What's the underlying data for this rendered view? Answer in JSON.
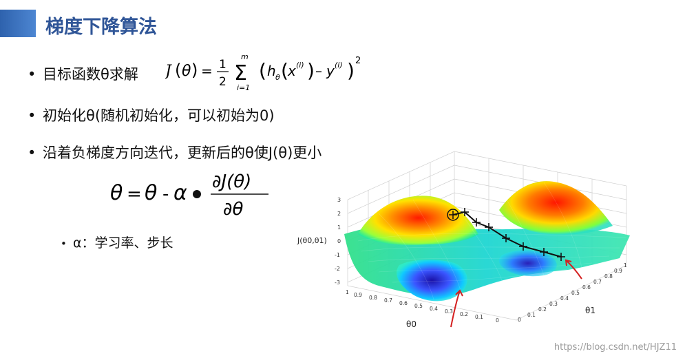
{
  "title": "梯度下降算法",
  "bullets": [
    {
      "text": "目标函数θ求解"
    },
    {
      "text": "初始化θ(随机初始化，可以初始为0)"
    },
    {
      "text": "沿着负梯度方向迭代，更新后的θ使J(θ)更小"
    }
  ],
  "sub_bullet": "α：学习率、步长",
  "equations": {
    "cost_function": "J(θ) = 1/2 Σ_{i=1}^{m} (h_θ(x^(i)) − y^(i))²",
    "update_rule": "θ = θ - α • ∂J(θ)/∂θ"
  },
  "plot": {
    "zlabel": "J(θ0,θ1)",
    "xlabel": "θ0",
    "ylabel": "θ1",
    "z_ticks": [
      "3",
      "2",
      "1",
      "0",
      "-1",
      "-2",
      "-3"
    ],
    "x_ticks": [
      "1",
      "0.9",
      "0.8",
      "0.7",
      "0.6",
      "0.5",
      "0.4",
      "0.3",
      "0.2",
      "0.1",
      "0"
    ],
    "y_ticks": [
      "0",
      "0.1",
      "0.2",
      "0.3",
      "0.4",
      "0.5",
      "0.6",
      "0.7",
      "0.8",
      "0.9",
      "1"
    ]
  },
  "watermark": "https://blog.csdn.net/HJZ11",
  "colors": {
    "title": "#2f5597",
    "accent_bar": "#2e62ad"
  }
}
